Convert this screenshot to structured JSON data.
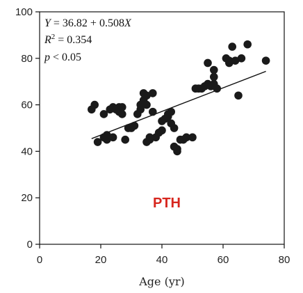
{
  "chart_data": {
    "type": "scatter",
    "title": "",
    "xlabel": "Age (yr)",
    "ylabel": "",
    "xlim": [
      0,
      80
    ],
    "ylim": [
      0,
      100
    ],
    "xticks": [
      0,
      20,
      40,
      60,
      80
    ],
    "yticks": [
      0,
      20,
      40,
      60,
      80,
      100
    ],
    "grid": false,
    "annotations": {
      "equation": "Y = 36.82 + 0.508X",
      "r_squared": "R2 = 0.354",
      "p_value": "p < 0.05",
      "panel_label": "PTH"
    },
    "panel_label_color": "#d7261e",
    "point_color": "#1a1a1a",
    "regression": {
      "intercept": 36.82,
      "slope": 0.508,
      "x_range": [
        17,
        74
      ]
    },
    "points": [
      [
        17,
        58
      ],
      [
        18,
        60
      ],
      [
        19,
        44
      ],
      [
        21,
        56
      ],
      [
        21,
        46
      ],
      [
        22,
        45
      ],
      [
        22,
        47
      ],
      [
        23,
        58
      ],
      [
        24,
        59
      ],
      [
        24,
        46
      ],
      [
        25,
        58
      ],
      [
        26,
        59
      ],
      [
        26,
        57
      ],
      [
        27,
        56
      ],
      [
        27,
        59
      ],
      [
        28,
        45
      ],
      [
        29,
        50
      ],
      [
        30,
        50
      ],
      [
        31,
        51
      ],
      [
        32,
        56
      ],
      [
        33,
        60
      ],
      [
        33,
        58
      ],
      [
        34,
        65
      ],
      [
        34,
        62
      ],
      [
        35,
        64
      ],
      [
        35,
        60
      ],
      [
        35,
        44
      ],
      [
        36,
        46
      ],
      [
        36,
        45
      ],
      [
        37,
        57
      ],
      [
        37,
        65
      ],
      [
        38,
        46
      ],
      [
        39,
        48
      ],
      [
        40,
        49
      ],
      [
        40,
        53
      ],
      [
        41,
        54
      ],
      [
        42,
        56
      ],
      [
        42,
        55
      ],
      [
        43,
        57
      ],
      [
        43,
        52
      ],
      [
        44,
        50
      ],
      [
        44,
        42
      ],
      [
        45,
        41
      ],
      [
        45,
        40
      ],
      [
        46,
        45
      ],
      [
        47,
        45
      ],
      [
        48,
        46
      ],
      [
        50,
        46
      ],
      [
        51,
        67
      ],
      [
        52,
        67
      ],
      [
        53,
        67
      ],
      [
        54,
        68
      ],
      [
        55,
        69
      ],
      [
        55,
        78
      ],
      [
        56,
        68
      ],
      [
        57,
        72
      ],
      [
        57,
        75
      ],
      [
        57,
        69
      ],
      [
        58,
        67
      ],
      [
        61,
        80
      ],
      [
        62,
        78
      ],
      [
        62,
        79
      ],
      [
        63,
        85
      ],
      [
        64,
        79
      ],
      [
        65,
        64
      ],
      [
        66,
        80
      ],
      [
        68,
        86
      ],
      [
        74,
        79
      ]
    ]
  }
}
